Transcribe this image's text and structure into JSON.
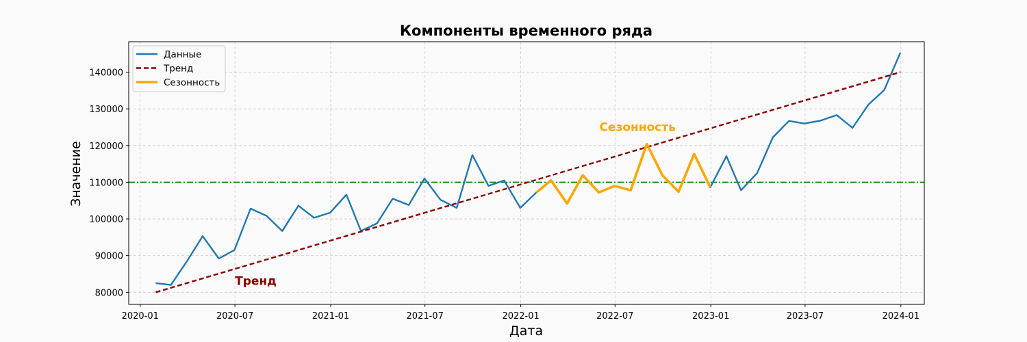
{
  "chart_data": {
    "type": "line",
    "title": "Компоненты временного ряда",
    "xlabel": "Дата",
    "ylabel": "Значение",
    "x_ticks": [
      "2020-01",
      "2020-07",
      "2021-01",
      "2021-07",
      "2022-01",
      "2022-07",
      "2023-01",
      "2023-07",
      "2024-01"
    ],
    "y_ticks": [
      "80000",
      "90000",
      "100000",
      "110000",
      "120000",
      "130000",
      "140000"
    ],
    "ylim": [
      76700,
      148300
    ],
    "xlim": [
      "2019-12-10",
      "2024-02-15"
    ],
    "grid": true,
    "legend_position": "top-left",
    "series": [
      {
        "name": "Данные",
        "style": "solid",
        "color": "#1f77b4",
        "x": [
          "2020-01-31",
          "2020-02-29",
          "2020-03-31",
          "2020-04-30",
          "2020-05-31",
          "2020-06-30",
          "2020-07-31",
          "2020-08-31",
          "2020-09-30",
          "2020-10-31",
          "2020-11-30",
          "2020-12-31",
          "2021-01-31",
          "2021-02-28",
          "2021-03-31",
          "2021-04-30",
          "2021-05-31",
          "2021-06-30",
          "2021-07-31",
          "2021-08-31",
          "2021-09-30",
          "2021-10-31",
          "2021-11-30",
          "2021-12-31",
          "2022-01-31",
          "2022-02-28",
          "2022-03-31",
          "2022-04-30",
          "2022-05-31",
          "2022-06-30",
          "2022-07-31",
          "2022-08-31",
          "2022-09-30",
          "2022-10-31",
          "2022-11-30",
          "2022-12-31",
          "2023-01-31",
          "2023-02-28",
          "2023-03-31",
          "2023-04-30",
          "2023-05-31",
          "2023-06-30",
          "2023-07-31",
          "2023-08-31",
          "2023-09-30",
          "2023-10-31",
          "2023-11-30",
          "2023-12-31"
        ],
        "values": [
          82500,
          82000,
          88500,
          95300,
          89200,
          91500,
          102800,
          100800,
          96700,
          103600,
          100300,
          101700,
          106600,
          96700,
          98800,
          105500,
          103800,
          111000,
          105200,
          103000,
          117400,
          109000,
          110500,
          103000,
          107200,
          110500,
          104200,
          111900,
          107200,
          109000,
          107800,
          120400,
          111900,
          107400,
          117700,
          108600,
          117100,
          107800,
          112500,
          122200,
          126700,
          126000,
          126800,
          128300,
          124800,
          131200,
          135100,
          145300
        ]
      },
      {
        "name": "Тренд",
        "style": "dashed",
        "color": "#8b0000",
        "x": [
          "2020-01-31",
          "2023-12-31"
        ],
        "values": [
          80000,
          140000
        ]
      },
      {
        "name": "Сезонность",
        "style": "solid-thick",
        "color": "#ffa500",
        "x": [
          "2022-01-31",
          "2022-02-28",
          "2022-03-31",
          "2022-04-30",
          "2022-05-31",
          "2022-06-30",
          "2022-07-31",
          "2022-08-31",
          "2022-09-30",
          "2022-10-31",
          "2022-11-30",
          "2022-12-31"
        ],
        "values": [
          107200,
          110500,
          104200,
          111900,
          107200,
          109000,
          107800,
          120400,
          111900,
          107400,
          117700,
          108600
        ]
      }
    ],
    "reference_line": {
      "y": 110000,
      "color": "#008000",
      "style": "dash-dot"
    },
    "annotations": [
      {
        "text": "Тренд",
        "x": "2020-07-01",
        "y": 82000,
        "color": "#8b0000"
      },
      {
        "text": "Сезонность",
        "x": "2022-06-01",
        "y": 124000,
        "color": "#ffa500"
      }
    ]
  }
}
